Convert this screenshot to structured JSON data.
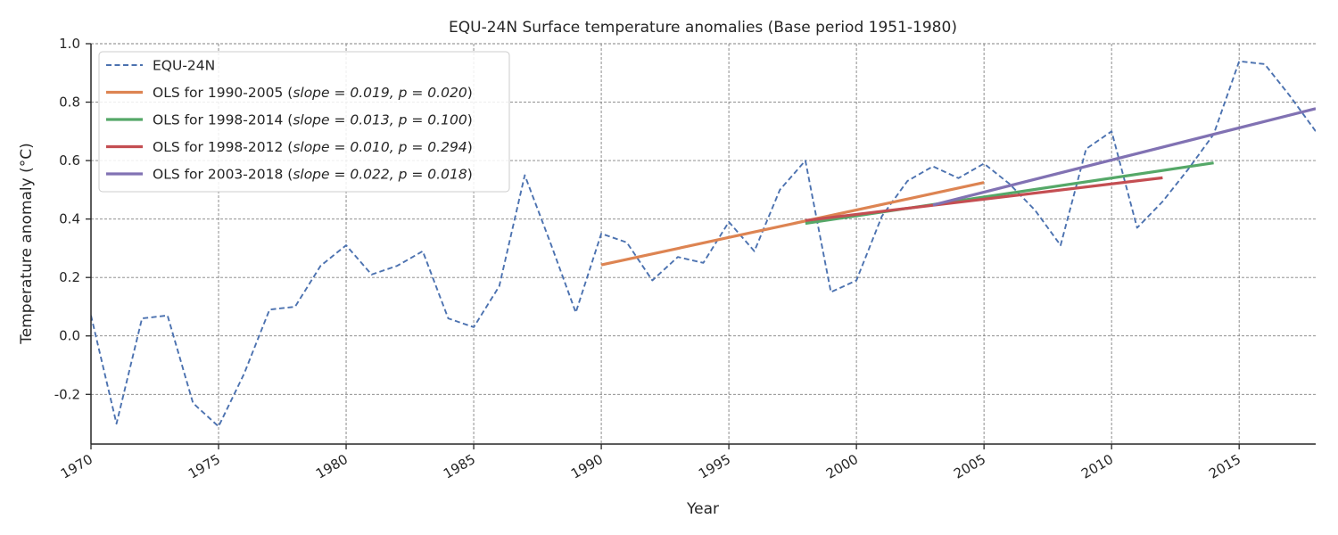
{
  "chart_data": {
    "type": "line",
    "title": "EQU-24N Surface temperature anomalies (Base period 1951-1980)",
    "xlabel": "Year",
    "ylabel": "Temperature anomaly (°C)",
    "xlim": [
      1970,
      2018
    ],
    "ylim": [
      -0.37,
      1.0
    ],
    "xticks": [
      1970,
      1975,
      1980,
      1985,
      1990,
      1995,
      2000,
      2005,
      2010,
      2015
    ],
    "yticks": [
      -0.2,
      0.0,
      0.2,
      0.4,
      0.6,
      0.8,
      1.0
    ],
    "ytick_labels": [
      "-0.2",
      "0.0",
      "0.2",
      "0.4",
      "0.6",
      "0.8",
      "1.0"
    ],
    "grid": true,
    "legend_position": "top-left",
    "series": [
      {
        "name": "EQU-24N",
        "style": "dashed",
        "color": "#4c72b0",
        "x": [
          1970,
          1971,
          1972,
          1973,
          1974,
          1975,
          1976,
          1977,
          1978,
          1979,
          1980,
          1981,
          1982,
          1983,
          1984,
          1985,
          1986,
          1987,
          1988,
          1989,
          1990,
          1991,
          1992,
          1993,
          1994,
          1995,
          1996,
          1997,
          1998,
          1999,
          2000,
          2001,
          2002,
          2003,
          2004,
          2005,
          2006,
          2007,
          2008,
          2009,
          2010,
          2011,
          2012,
          2013,
          2014,
          2015,
          2016,
          2017,
          2018
        ],
        "y": [
          0.07,
          -0.3,
          0.06,
          0.07,
          -0.23,
          -0.31,
          -0.13,
          0.09,
          0.1,
          0.24,
          0.31,
          0.21,
          0.24,
          0.29,
          0.06,
          0.03,
          0.17,
          0.55,
          0.32,
          0.08,
          0.35,
          0.32,
          0.19,
          0.27,
          0.25,
          0.39,
          0.29,
          0.5,
          0.6,
          0.15,
          0.19,
          0.41,
          0.53,
          0.58,
          0.54,
          0.59,
          0.52,
          0.43,
          0.31,
          0.64,
          0.7,
          0.37,
          0.46,
          0.57,
          0.69,
          0.94,
          0.93,
          0.82,
          0.7
        ]
      },
      {
        "name": "OLS for 1990-2005 (slope = 0.019, p = 0.020)",
        "label_prefix": "OLS for 1990-2005 (",
        "label_math": "slope = 0.019, p = 0.020",
        "label_suffix": ")",
        "style": "solid",
        "color": "#dd8452",
        "x": [
          1990,
          2005
        ],
        "y": [
          0.243,
          0.525
        ]
      },
      {
        "name": "OLS for 1998-2014 (slope = 0.013, p = 0.100)",
        "label_prefix": "OLS for 1998-2014 (",
        "label_math": "slope = 0.013, p = 0.100",
        "label_suffix": ")",
        "style": "solid",
        "color": "#55a868",
        "x": [
          1998,
          2014
        ],
        "y": [
          0.385,
          0.592
        ]
      },
      {
        "name": "OLS for 1998-2012 (slope = 0.010, p = 0.294)",
        "label_prefix": "OLS for 1998-2012 (",
        "label_math": "slope = 0.010, p = 0.294",
        "label_suffix": ")",
        "style": "solid",
        "color": "#c44e52",
        "x": [
          1998,
          2012
        ],
        "y": [
          0.395,
          0.541
        ]
      },
      {
        "name": "OLS for 2003-2018 (slope = 0.022, p = 0.018)",
        "label_prefix": "OLS for 2003-2018 (",
        "label_math": "slope = 0.022, p = 0.018",
        "label_suffix": ")",
        "style": "solid",
        "color": "#8172b3",
        "x": [
          2003,
          2018
        ],
        "y": [
          0.448,
          0.778
        ]
      }
    ]
  }
}
